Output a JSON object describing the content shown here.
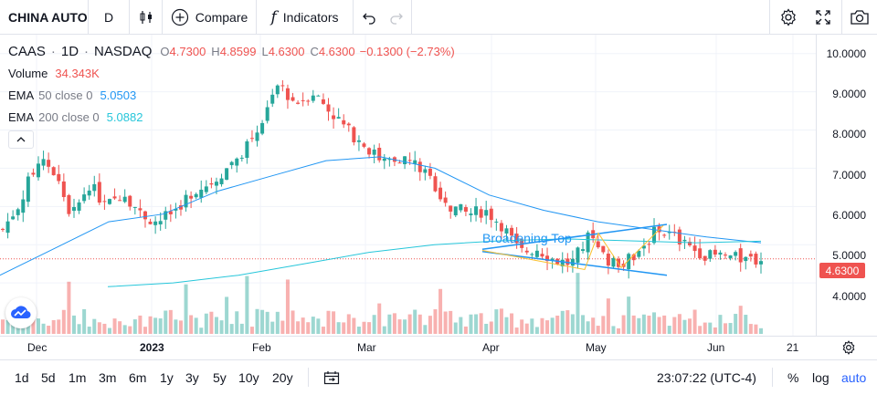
{
  "toolbar": {
    "symbol": "CHINA AUTO",
    "interval": "D",
    "compare_label": "Compare",
    "indicators_label": "Indicators"
  },
  "legend": {
    "symbol": "CAAS",
    "interval": "1D",
    "exchange": "NASDAQ",
    "o_label": "O",
    "o_value": "4.7300",
    "h_label": "H",
    "h_value": "4.8599",
    "l_label": "L",
    "l_value": "4.6300",
    "c_label": "C",
    "c_value": "4.6300",
    "change": "−0.1300 (−2.73%)",
    "volume_label": "Volume",
    "volume_value": "34.343K",
    "ema50_label": "EMA",
    "ema50_params": "50 close 0",
    "ema50_value": "5.0503",
    "ema200_label": "EMA",
    "ema200_params": "200 close 0",
    "ema200_value": "5.0882"
  },
  "pattern_label": "Broadening Top",
  "price_scale": [
    "10.0000",
    "9.0000",
    "8.0000",
    "7.0000",
    "6.0000",
    "5.0000",
    "4.0000"
  ],
  "current_price": "4.6300",
  "time_scale": [
    "Dec",
    "2023",
    "Feb",
    "Mar",
    "Apr",
    "May",
    "Jun",
    "21"
  ],
  "ranges": [
    "1d",
    "5d",
    "1m",
    "3m",
    "6m",
    "1y",
    "3y",
    "5y",
    "10y",
    "20y"
  ],
  "clock": "23:07:22 (UTC-4)",
  "scale_modes": {
    "percent": "%",
    "log": "log",
    "auto": "auto"
  },
  "colors": {
    "up": "#26a69a",
    "down": "#ef5350",
    "ema50": "#2196f3",
    "ema200": "#26c6da",
    "accent": "#2962ff"
  },
  "chart_data": {
    "type": "candlestick",
    "ohlc_close_series": [
      5.4,
      6.1,
      7.2,
      6.9,
      5.7,
      6.6,
      6.0,
      6.4,
      5.8,
      5.6,
      5.9,
      6.4,
      6.6,
      7.0,
      7.5,
      8.2,
      9.2,
      8.7,
      9.0,
      8.5,
      8.0,
      7.6,
      7.2,
      7.3,
      7.1,
      6.6,
      6.0,
      5.8,
      5.9,
      5.5,
      4.8,
      4.9,
      4.6,
      4.5,
      5.2,
      4.6,
      4.5,
      4.9,
      5.4,
      5.2,
      4.9,
      4.7,
      4.7,
      4.6,
      4.63
    ],
    "ema50": [
      4.2,
      4.9,
      5.6,
      5.8,
      6.4,
      6.8,
      7.2,
      7.3,
      7.0,
      6.3,
      5.9,
      5.6,
      5.4,
      5.2,
      5.05
    ],
    "ema200": [
      3.9,
      4.0,
      4.2,
      4.5,
      4.8,
      5.0,
      5.1,
      5.15,
      5.1,
      5.05,
      5.09
    ],
    "ylim": [
      3.0,
      10.4
    ]
  }
}
